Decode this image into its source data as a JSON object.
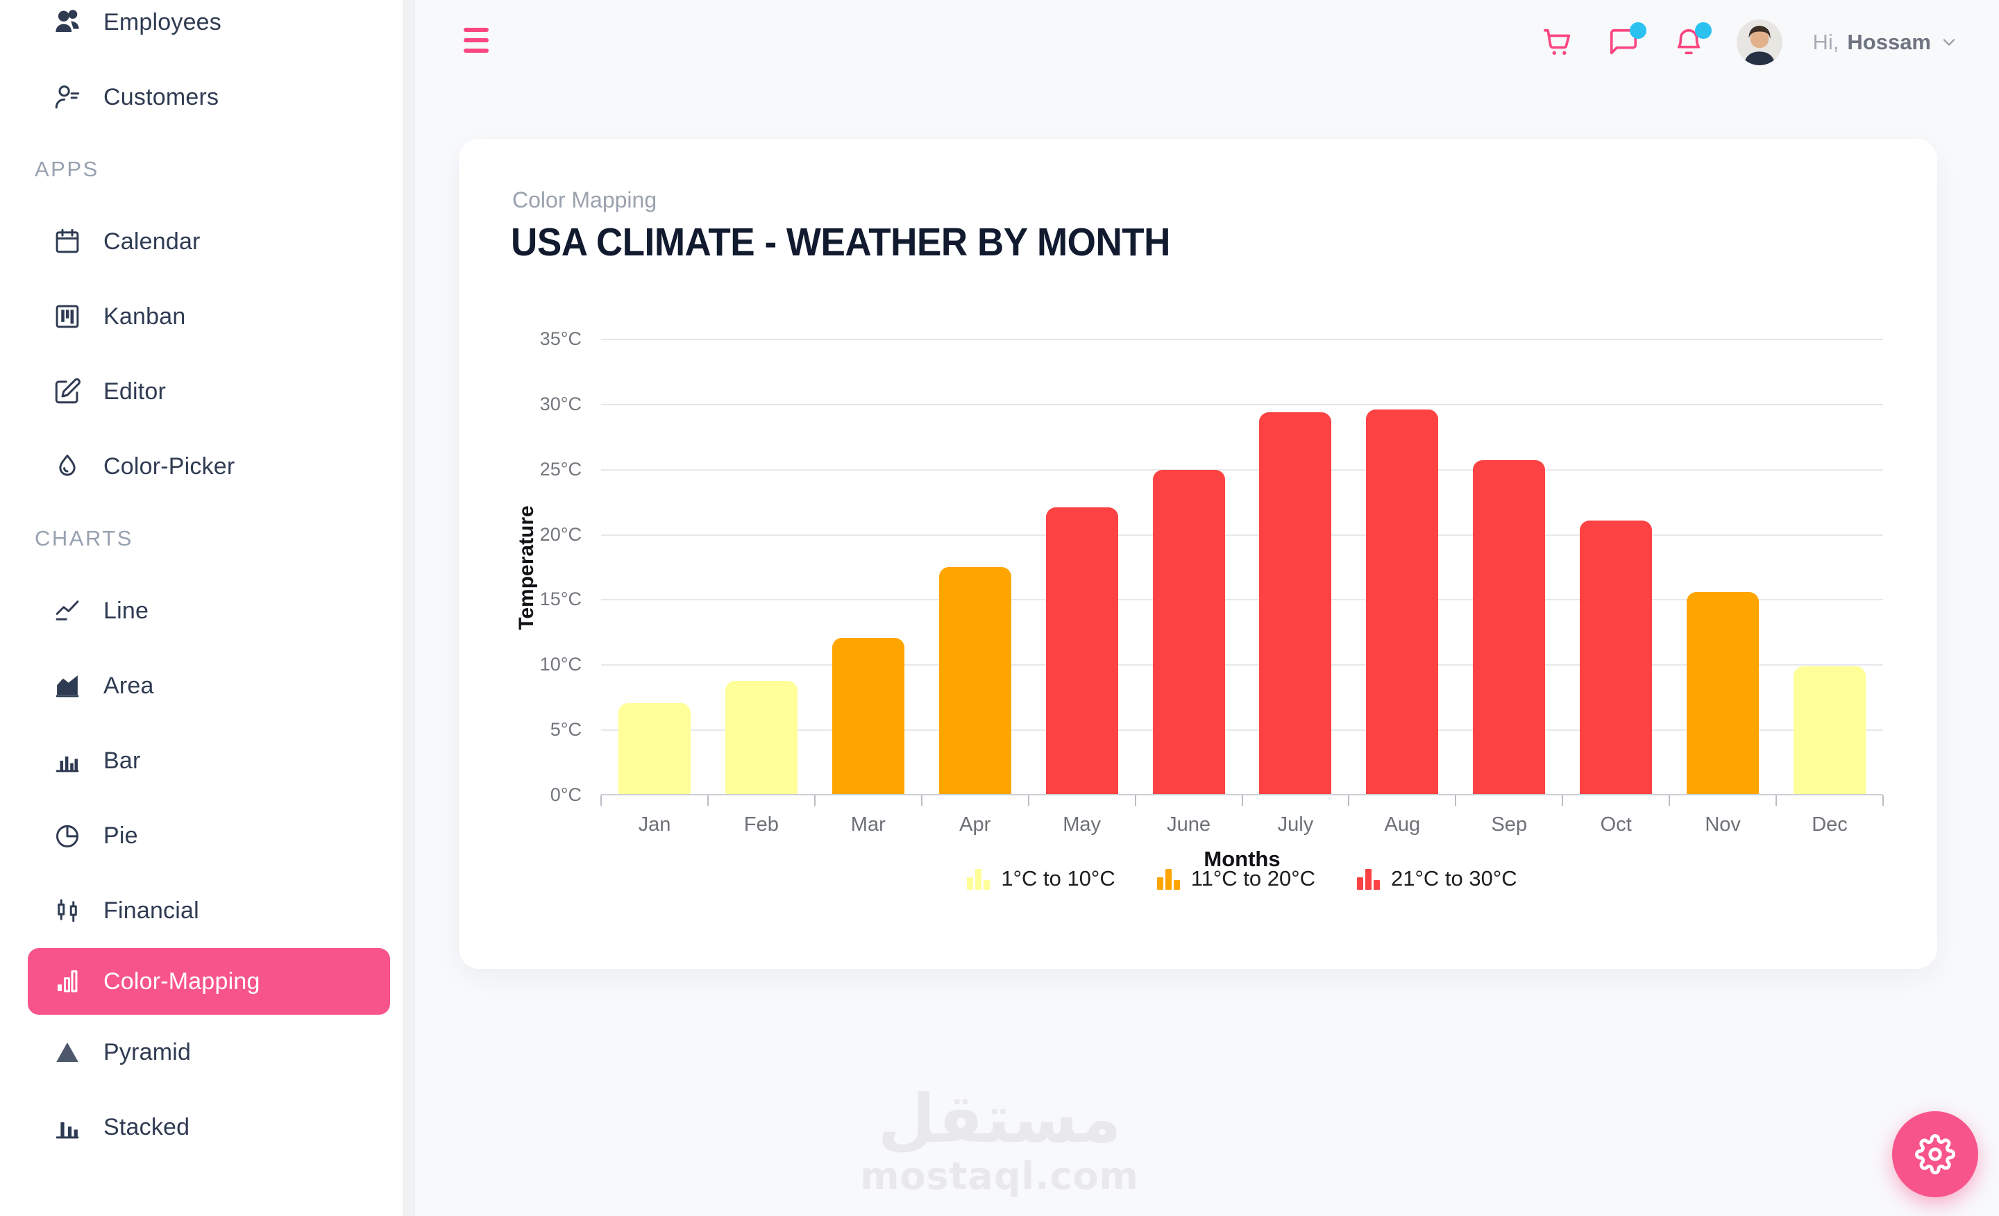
{
  "topbar": {
    "greeting_prefix": "Hi,",
    "username": "Hossam",
    "icons": [
      "cart-icon",
      "chat-icon",
      "bell-icon"
    ],
    "badge_color": "#2BC1F0",
    "icon_color": "#FA4680"
  },
  "sidebar": {
    "sections": [
      {
        "header": "",
        "items": [
          {
            "label": "Employees",
            "icon": "employees",
            "active": false
          },
          {
            "label": "Customers",
            "icon": "customers",
            "active": false
          }
        ]
      },
      {
        "header": "APPS",
        "items": [
          {
            "label": "Calendar",
            "icon": "calendar",
            "active": false
          },
          {
            "label": "Kanban",
            "icon": "kanban",
            "active": false
          },
          {
            "label": "Editor",
            "icon": "editor",
            "active": false
          },
          {
            "label": "Color-Picker",
            "icon": "colorpicker",
            "active": false
          }
        ]
      },
      {
        "header": "CHARTS",
        "items": [
          {
            "label": "Line",
            "icon": "line",
            "active": false
          },
          {
            "label": "Area",
            "icon": "area",
            "active": false
          },
          {
            "label": "Bar",
            "icon": "bar",
            "active": false
          },
          {
            "label": "Pie",
            "icon": "pie",
            "active": false
          },
          {
            "label": "Financial",
            "icon": "financial",
            "active": false
          },
          {
            "label": "Color-Mapping",
            "icon": "colormapping",
            "active": true
          },
          {
            "label": "Pyramid",
            "icon": "pyramid",
            "active": false
          },
          {
            "label": "Stacked",
            "icon": "stacked",
            "active": false
          }
        ]
      }
    ],
    "active_color": "#F8548C"
  },
  "card": {
    "subtitle": "Color Mapping",
    "title": "USA CLIMATE - WEATHER BY MONTH"
  },
  "chart_data": {
    "type": "bar",
    "title": "USA CLIMATE - WEATHER BY MONTH",
    "categories": [
      "Jan",
      "Feb",
      "Mar",
      "Apr",
      "May",
      "June",
      "July",
      "Aug",
      "Sep",
      "Oct",
      "Nov",
      "Dec"
    ],
    "values": [
      7,
      8.7,
      12,
      17.4,
      22,
      24.9,
      29.3,
      29.5,
      25.6,
      21,
      15.5,
      9.8
    ],
    "xlabel": "Months",
    "ylabel": "Temperature",
    "ylim": [
      0,
      35
    ],
    "ytick_step": 5,
    "ytick_suffix": "°C",
    "grid": true,
    "legend_position": "bottom",
    "legend": [
      {
        "label": "1°C to 10°C",
        "min": 1,
        "max": 10,
        "color": "#FFFF99"
      },
      {
        "label": "11°C to 20°C",
        "min": 11,
        "max": 20,
        "color": "#FFA500"
      },
      {
        "label": "21°C to 30°C",
        "min": 21,
        "max": 30,
        "color": "#FC4242"
      }
    ]
  },
  "watermark": {
    "arabic": "مستقل",
    "latin": "mostaql.com"
  },
  "fab": {
    "icon": "settings-gear-icon"
  }
}
